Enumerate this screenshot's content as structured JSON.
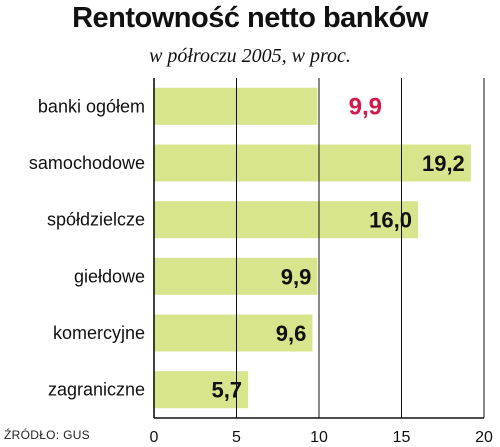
{
  "title": "Rentowność netto banków",
  "subtitle": "w półroczu 2005, w proc.",
  "source": "ŹRÓDŁO: GUS",
  "colors": {
    "bar": "#d8e58c",
    "highlight_label": "#d6184a",
    "label": "#111111",
    "grid": "#111111"
  },
  "chart_data": {
    "type": "bar",
    "orientation": "horizontal",
    "title": "Rentowność netto banków",
    "subtitle": "w półroczu 2005, w proc.",
    "categories": [
      "banki ogółem",
      "samochodowe",
      "spółdzielcze",
      "giełdowe",
      "komercyjne",
      "zagraniczne"
    ],
    "values": [
      9.9,
      19.2,
      16.0,
      9.9,
      9.6,
      5.7
    ],
    "value_labels": [
      "9,9",
      "19,2",
      "16,0",
      "9,9",
      "9,6",
      "5,7"
    ],
    "highlight_index": 0,
    "xlim": [
      0,
      20
    ],
    "xticks": [
      0,
      5,
      10,
      15,
      20
    ],
    "grid": true
  }
}
